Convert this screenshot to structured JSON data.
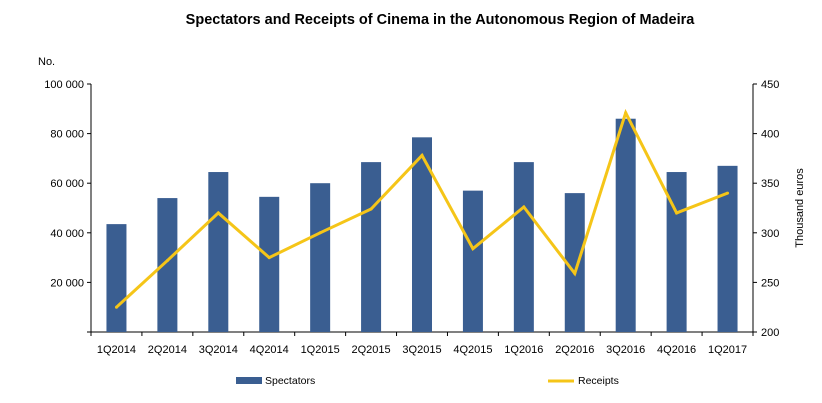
{
  "chart_data": {
    "type": "bar",
    "title": "Spectators and Receipts of Cinema in the Autonomous Region of Madeira",
    "ylabel_left": "No.",
    "ylabel_right": "Thousand euros",
    "categories": [
      "1Q2014",
      "2Q2014",
      "3Q2014",
      "4Q2014",
      "1Q2015",
      "2Q2015",
      "3Q2015",
      "4Q2015",
      "1Q2016",
      "2Q2016",
      "3Q2016",
      "4Q2016",
      "1Q2017"
    ],
    "left_axis": {
      "min": 0,
      "max": 100000,
      "ticks": [
        "20 000",
        "40 000",
        "60 000",
        "80 000",
        "100 000"
      ],
      "tick_values": [
        20000,
        40000,
        60000,
        80000,
        100000
      ]
    },
    "right_axis": {
      "min": 200,
      "max": 450,
      "ticks": [
        "200",
        "250",
        "300",
        "350",
        "400",
        "450"
      ],
      "tick_values": [
        200,
        250,
        300,
        350,
        400,
        450
      ]
    },
    "series": [
      {
        "name": "Spectators",
        "type": "bar",
        "axis": "left",
        "color": "#3a5e91",
        "values": [
          43500,
          54000,
          64500,
          54500,
          60000,
          68500,
          78500,
          57000,
          68500,
          56000,
          86000,
          64500,
          67000
        ]
      },
      {
        "name": "Receipts",
        "type": "line",
        "axis": "right",
        "color": "#f5c518",
        "values": [
          225,
          272,
          320,
          275,
          300,
          324,
          378,
          284,
          326,
          259,
          421,
          320,
          340
        ]
      }
    ],
    "grid": false,
    "legend": "bottom"
  }
}
